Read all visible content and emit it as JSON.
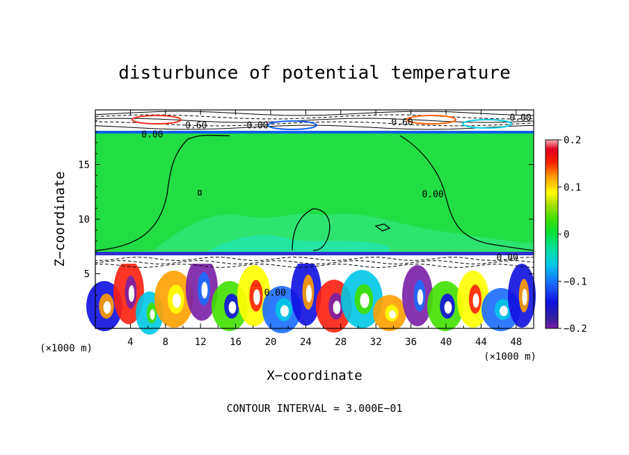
{
  "chart_data": {
    "type": "heatmap",
    "title": "disturbunce of potential temperature",
    "xlabel": "X−coordinate",
    "ylabel": "Z−coordinate",
    "x_unit": "(×1000 m)",
    "x_unit_right": "(×1000 m)",
    "footer": "CONTOUR INTERVAL = 3.000E−01",
    "xlim": [
      0,
      50
    ],
    "ylim": [
      0,
      20
    ],
    "x_ticks": [
      4,
      8,
      12,
      16,
      20,
      24,
      28,
      32,
      36,
      40,
      44,
      48
    ],
    "y_ticks": [
      5,
      10,
      15
    ],
    "colorbar": {
      "min": -0.2,
      "max": 0.2,
      "ticks": [
        0.2,
        0.1,
        0,
        -0.1,
        -0.2
      ],
      "tick_labels": [
        "0.2",
        "0.1",
        "0",
        "−0.1",
        "−0.2"
      ]
    },
    "contour_interval": 0.3,
    "contour_labels": [
      {
        "text": "0.00",
        "x": 6.5,
        "z": 17.5
      },
      {
        "text": "0.60",
        "x": 11.5,
        "z": 18.3
      },
      {
        "text": "0.00",
        "x": 18.5,
        "z": 18.3
      },
      {
        "text": "0.60",
        "x": 35.0,
        "z": 18.6
      },
      {
        "text": "0.00",
        "x": 48.5,
        "z": 19.0
      },
      {
        "text": "0.00",
        "x": 38.5,
        "z": 12.0
      },
      {
        "text": "0.00",
        "x": 20.5,
        "z": 3.0
      },
      {
        "text": "0.00",
        "x": 47.0,
        "z": 6.2
      }
    ]
  }
}
